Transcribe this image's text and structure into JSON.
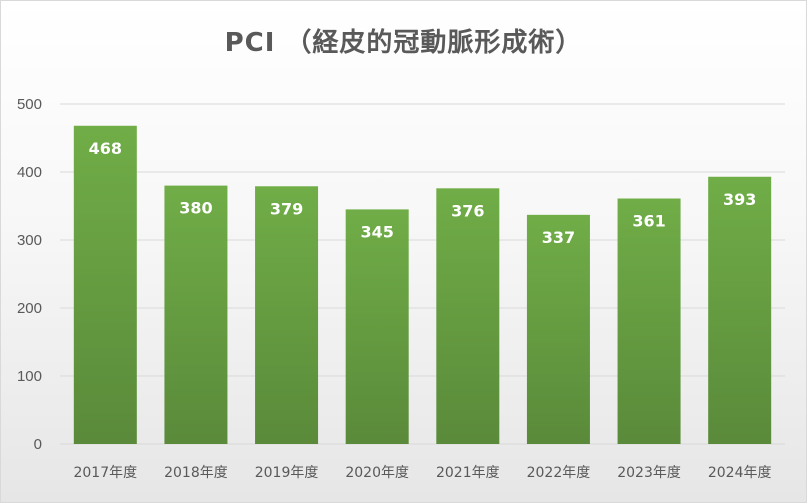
{
  "chart_data": {
    "type": "bar",
    "title": "PCI （経皮的冠動脈形成術）",
    "xlabel": "",
    "ylabel": "",
    "categories": [
      "2017年度",
      "2018年度",
      "2019年度",
      "2020年度",
      "2021年度",
      "2022年度",
      "2023年度",
      "2024年度"
    ],
    "values": [
      468,
      380,
      379,
      345,
      376,
      337,
      361,
      393
    ],
    "data_labels": [
      "468",
      "380",
      "379",
      "345",
      "376",
      "337",
      "361",
      "393"
    ],
    "ylim": [
      0,
      500
    ],
    "yticks": [
      0,
      100,
      200,
      300,
      400,
      500
    ],
    "ytick_labels": [
      "0",
      "100",
      "200",
      "300",
      "400",
      "500"
    ],
    "grid": true,
    "legend": "none",
    "colors": {
      "bar_top": "#70ad47",
      "bar_bottom": "#5a8a3a",
      "gridline": "#d9d9d9",
      "text": "#595959",
      "data_label": "#ffffff"
    }
  }
}
